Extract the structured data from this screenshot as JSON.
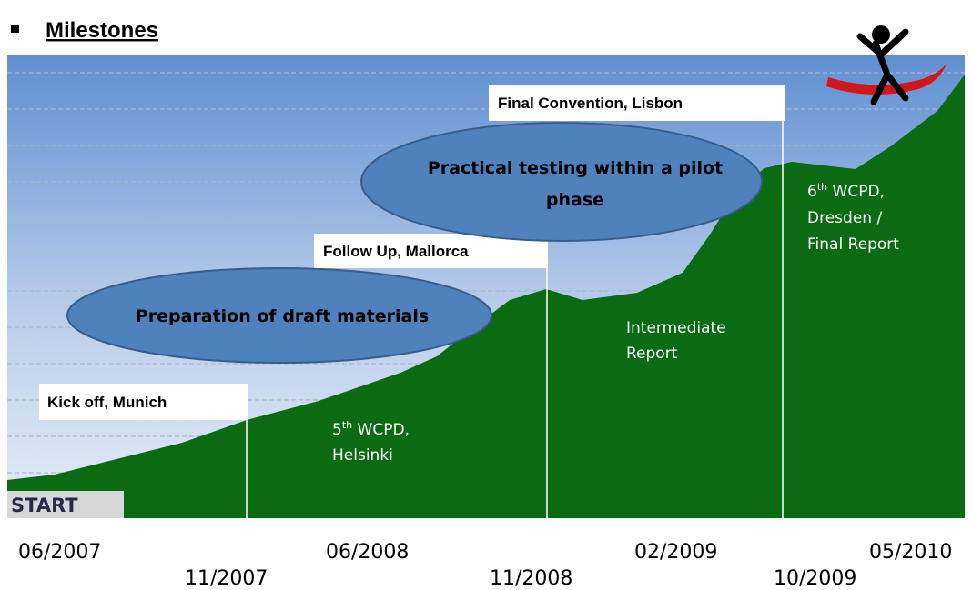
{
  "header": {
    "title": "Milestones"
  },
  "milestones": [
    {
      "label": "Kick off,  Munich"
    },
    {
      "label": "Follow Up, Mallorca"
    },
    {
      "label": "Final Convention, Lisbon"
    }
  ],
  "phases": [
    {
      "label": "Preparation of draft materials"
    },
    {
      "lines": [
        "Practical testing within a pilot",
        "phase"
      ]
    }
  ],
  "annotations": [
    {
      "number": "5",
      "suffix": "th",
      "text": " WCPD,",
      "lines": [
        "Helsinki"
      ]
    },
    {
      "lines": [
        "Intermediate",
        "Report"
      ]
    },
    {
      "number": "6",
      "suffix": "th",
      "text": " WCPD,",
      "lines": [
        "Dresden /",
        "Final Report"
      ]
    }
  ],
  "start": "START",
  "dates": [
    "06/2007",
    "11/2007",
    "06/2008",
    "11/2008",
    "02/2009",
    "10/2009",
    "05/2010"
  ]
}
